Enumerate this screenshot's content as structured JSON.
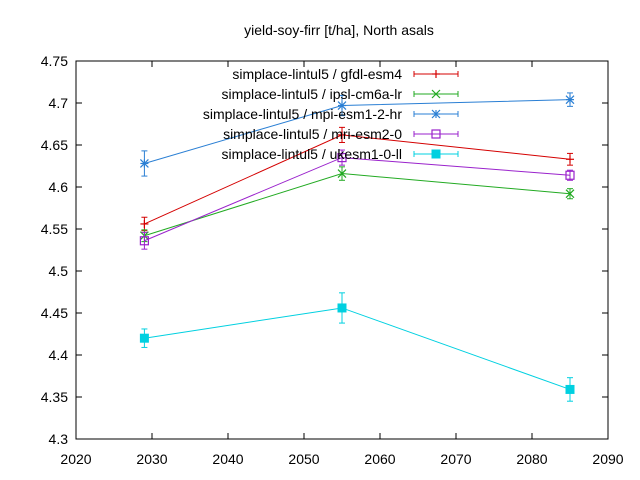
{
  "chart_data": {
    "type": "line",
    "title": "yield-soy-firr [t/ha], North asals",
    "xlabel": "",
    "ylabel": "",
    "xlim": [
      2020,
      2090
    ],
    "ylim": [
      4.3,
      4.75
    ],
    "x_ticks": [
      "2020",
      "2030",
      "2040",
      "2050",
      "2060",
      "2070",
      "2080",
      "2090"
    ],
    "y_ticks": [
      "4.3",
      "4.35",
      "4.4",
      "4.45",
      "4.5",
      "4.55",
      "4.6",
      "4.65",
      "4.7",
      "4.75"
    ],
    "grid": false,
    "legend_position": "top-right",
    "x": [
      2029,
      2055,
      2085
    ],
    "series": [
      {
        "name": "simplace-lintul5 / gfdl-esm4",
        "color": "#d40000",
        "marker": "plus",
        "values": [
          4.556,
          4.662,
          4.633
        ],
        "errors": [
          0.008,
          0.009,
          0.007
        ]
      },
      {
        "name": "simplace-lintul5 / ipsl-cm6a-lr",
        "color": "#22aa22",
        "marker": "cross",
        "values": [
          4.542,
          4.616,
          4.592
        ],
        "errors": [
          0.007,
          0.008,
          0.006
        ]
      },
      {
        "name": "simplace-lintul5 / mpi-esm1-2-hr",
        "color": "#2a7fd4",
        "marker": "star",
        "values": [
          4.628,
          4.697,
          4.704
        ],
        "errors": [
          0.015,
          0.012,
          0.008
        ]
      },
      {
        "name": "simplace-lintul5 / mri-esm2-0",
        "color": "#9a22cc",
        "marker": "square-open",
        "values": [
          4.536,
          4.635,
          4.614
        ],
        "errors": [
          0.01,
          0.009,
          0.006
        ]
      },
      {
        "name": "simplace-lintul5 / ukesm1-0-ll",
        "color": "#00d0e0",
        "marker": "square-filled",
        "values": [
          4.42,
          4.456,
          4.359
        ],
        "errors": [
          0.011,
          0.018,
          0.014
        ]
      }
    ]
  }
}
